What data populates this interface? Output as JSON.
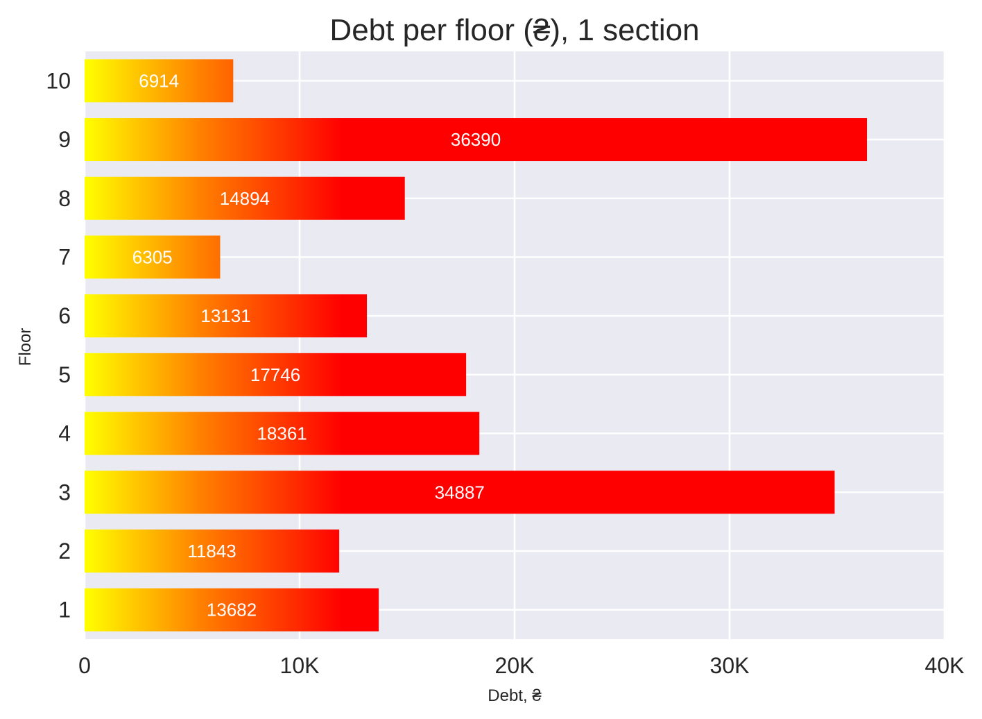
{
  "chart_data": {
    "type": "bar",
    "orientation": "horizontal",
    "title": "Debt per floor (₴), 1 section",
    "xlabel": "Debt, ₴",
    "ylabel": "Floor",
    "categories": [
      "1",
      "2",
      "3",
      "4",
      "5",
      "6",
      "7",
      "8",
      "9",
      "10"
    ],
    "values": [
      13682,
      11843,
      34887,
      18361,
      17746,
      13131,
      6305,
      14894,
      36390,
      6914
    ],
    "data_labels": [
      "13682",
      "11843",
      "34887",
      "18361",
      "17746",
      "13131",
      "6305",
      "14894",
      "36390",
      "6914"
    ],
    "xlim": [
      0,
      40000
    ],
    "x_ticks": [
      0,
      10000,
      20000,
      30000,
      40000
    ],
    "x_tick_labels": [
      "0",
      "10K",
      "20K",
      "30K",
      "40K"
    ],
    "grid": true,
    "colors": {
      "background": "#eaeaf2",
      "grid": "#ffffff",
      "gradient_start": "#ffff00",
      "gradient_mid": "#ff8000",
      "gradient_end": "#ff0000",
      "label": "#ffffff"
    }
  }
}
